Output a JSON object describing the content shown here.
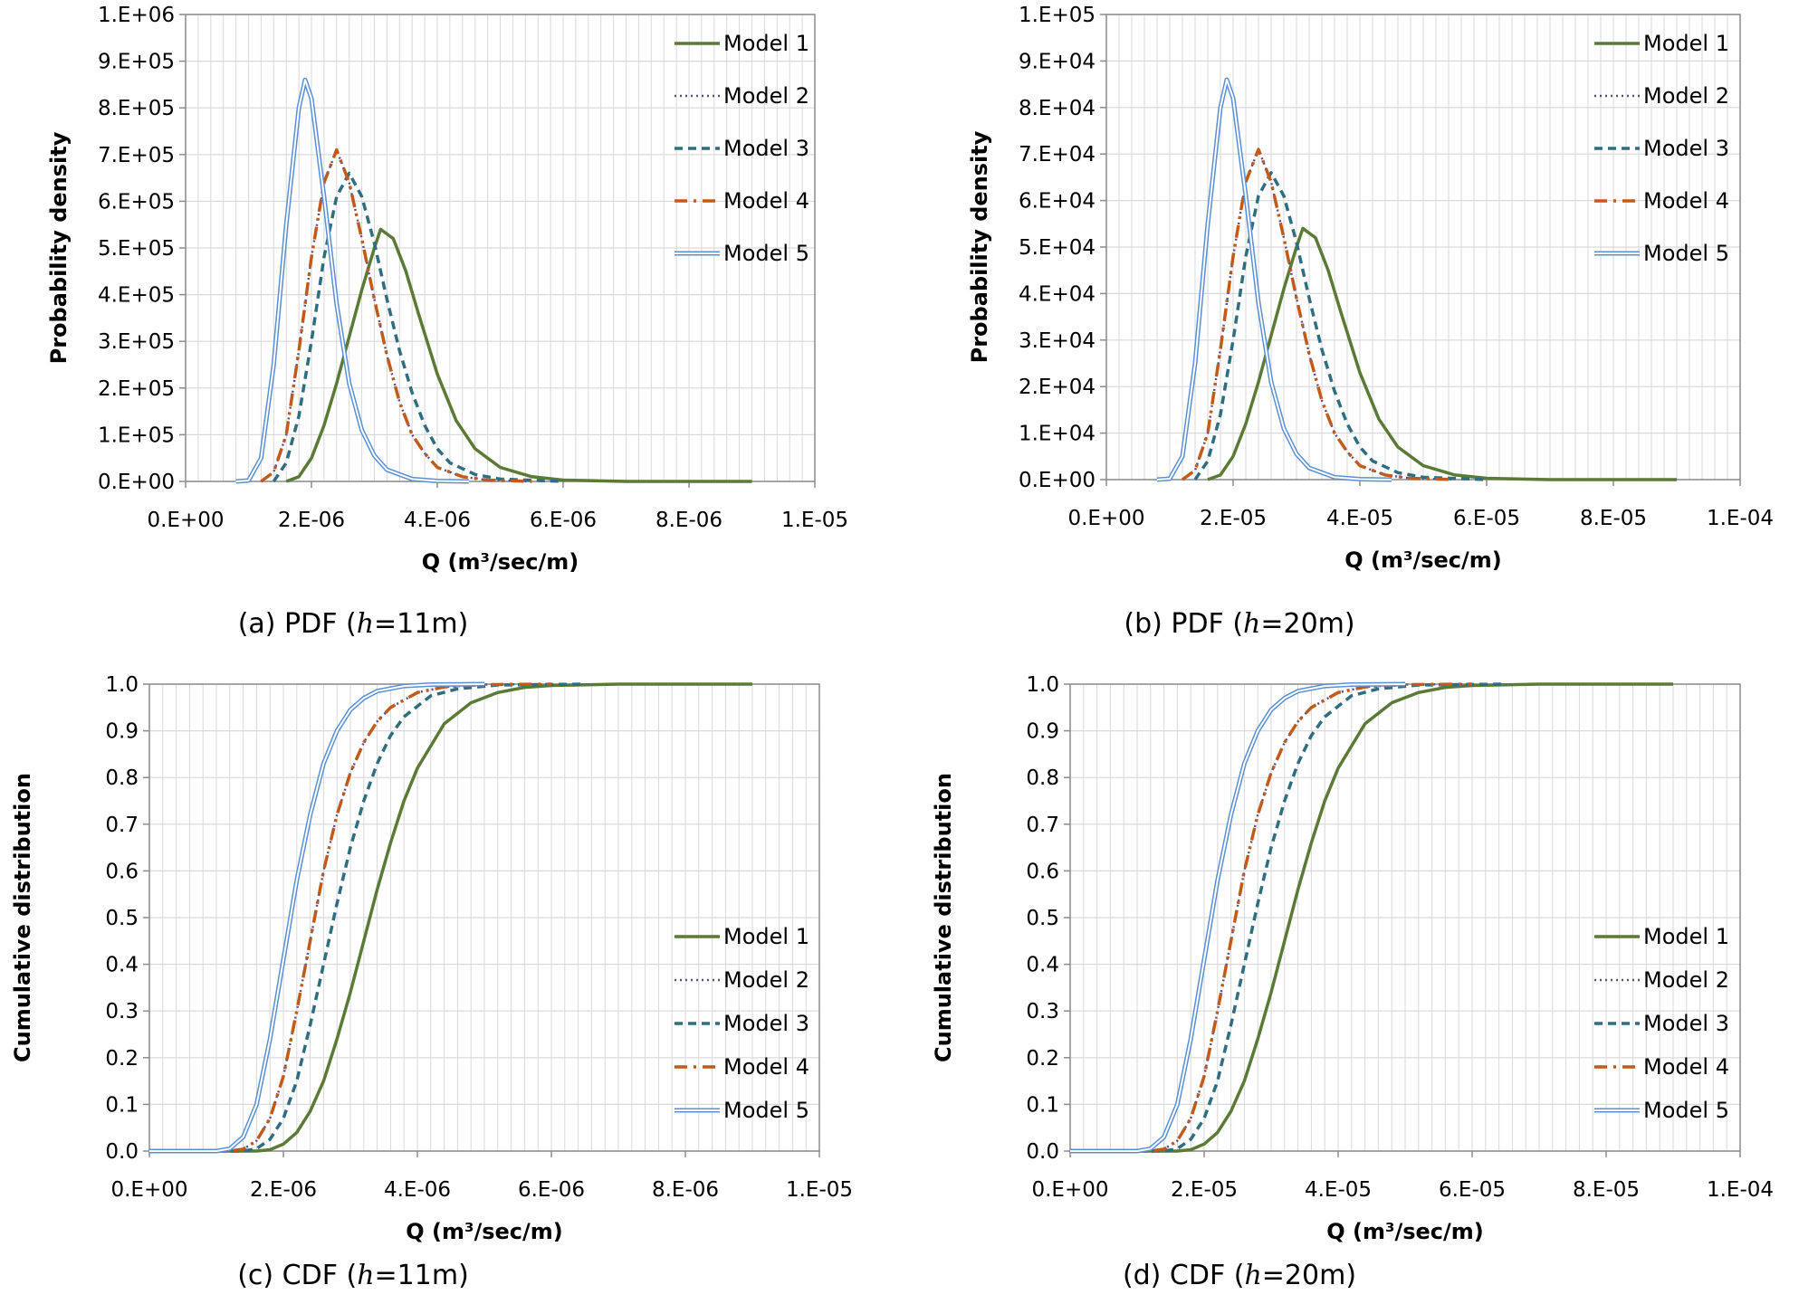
{
  "colors": {
    "model1": "#5a7a35",
    "model2": "#5d4e8a",
    "model3": "#2e6e80",
    "model4": "#c25a1a",
    "model5": "#5b8fd6",
    "grid": "#d9d9d9",
    "axis": "#8c8c8c"
  },
  "chart_data": [
    {
      "type": "line",
      "caption": "(a)  PDF  (h=11m)",
      "caption_parts": {
        "prefix": "(a)  PDF  (",
        "var": "h",
        "suffix": "=11m)"
      },
      "xlabel": "Q (m³/sec/m)",
      "ylabel": "Probability  density",
      "xlim": [
        0,
        1e-05
      ],
      "ylim": [
        0,
        1000000.0
      ],
      "x_ticks": [
        "0.E+00",
        "2.E-06",
        "4.E-06",
        "6.E-06",
        "8.E-06",
        "1.E-05"
      ],
      "y_ticks": [
        "0.E+00",
        "1.E+05",
        "2.E+05",
        "3.E+05",
        "4.E+05",
        "5.E+05",
        "6.E+05",
        "7.E+05",
        "8.E+05",
        "9.E+05",
        "1.E+06"
      ],
      "legend_position": "top-right",
      "grid": true,
      "series": [
        {
          "name": "Model 1",
          "x": [
            1.6e-06,
            1.8e-06,
            2e-06,
            2.2e-06,
            2.4e-06,
            2.6e-06,
            2.8e-06,
            3e-06,
            3.1e-06,
            3.3e-06,
            3.5e-06,
            3.7e-06,
            4e-06,
            4.3e-06,
            4.6e-06,
            5e-06,
            5.5e-06,
            6e-06,
            7e-06,
            9e-06
          ],
          "y": [
            0,
            10000,
            50000,
            120000,
            210000,
            310000,
            410000,
            500000,
            540000,
            520000,
            450000,
            360000,
            230000,
            130000,
            70000,
            30000,
            10000,
            3000,
            0,
            0
          ]
        },
        {
          "name": "Model 2",
          "x": [
            1.2e-06,
            1.4e-06,
            1.6e-06,
            1.8e-06,
            2e-06,
            2.2e-06,
            2.4e-06,
            2.6e-06,
            2.8e-06,
            3e-06,
            3.2e-06,
            3.4e-06,
            3.6e-06,
            3.8e-06,
            4e-06,
            4.4e-06,
            4.8e-06,
            5.5e-06
          ],
          "y": [
            0,
            20000,
            100000,
            280000,
            480000,
            640000,
            710000,
            640000,
            520000,
            390000,
            270000,
            170000,
            100000,
            60000,
            30000,
            10000,
            3000,
            0
          ]
        },
        {
          "name": "Model 3",
          "x": [
            1.4e-06,
            1.6e-06,
            1.8e-06,
            2e-06,
            2.2e-06,
            2.4e-06,
            2.6e-06,
            2.8e-06,
            3e-06,
            3.2e-06,
            3.4e-06,
            3.6e-06,
            3.8e-06,
            4e-06,
            4.2e-06,
            4.6e-06,
            5e-06,
            6e-06
          ],
          "y": [
            0,
            40000,
            140000,
            300000,
            480000,
            610000,
            660000,
            610000,
            510000,
            390000,
            280000,
            190000,
            120000,
            70000,
            40000,
            15000,
            5000,
            0
          ]
        },
        {
          "name": "Model 4",
          "x": [
            1.2e-06,
            1.4e-06,
            1.6e-06,
            1.8e-06,
            2e-06,
            2.2e-06,
            2.4e-06,
            2.6e-06,
            2.8e-06,
            3e-06,
            3.2e-06,
            3.4e-06,
            3.6e-06,
            3.8e-06,
            4e-06,
            4.4e-06,
            4.8e-06,
            5.5e-06
          ],
          "y": [
            0,
            20000,
            100000,
            280000,
            480000,
            640000,
            710000,
            640000,
            520000,
            390000,
            270000,
            170000,
            100000,
            60000,
            30000,
            10000,
            3000,
            0
          ]
        },
        {
          "name": "Model 5",
          "x": [
            8e-07,
            1e-06,
            1.2e-06,
            1.4e-06,
            1.6e-06,
            1.8e-06,
            1.9e-06,
            2e-06,
            2.2e-06,
            2.4e-06,
            2.6e-06,
            2.8e-06,
            3e-06,
            3.2e-06,
            3.6e-06,
            4e-06,
            4.5e-06
          ],
          "y": [
            0,
            2000,
            50000,
            250000,
            550000,
            800000,
            860000,
            820000,
            610000,
            380000,
            210000,
            110000,
            55000,
            25000,
            5000,
            1000,
            0
          ]
        }
      ]
    },
    {
      "type": "line",
      "caption": "(b)  PDF  (h=20m)",
      "caption_parts": {
        "prefix": "(b)  PDF  (",
        "var": "h",
        "suffix": "=20m)"
      },
      "xlabel": "Q (m³/sec/m)",
      "ylabel": "Probability  density",
      "xlim": [
        0,
        0.0001
      ],
      "ylim": [
        0,
        100000.0
      ],
      "x_ticks": [
        "0.E+00",
        "2.E-05",
        "4.E-05",
        "6.E-05",
        "8.E-05",
        "1.E-04"
      ],
      "y_ticks": [
        "0.E+00",
        "1.E+04",
        "2.E+04",
        "3.E+04",
        "4.E+04",
        "5.E+04",
        "6.E+04",
        "7.E+04",
        "8.E+04",
        "9.E+04",
        "1.E+05"
      ],
      "legend_position": "top-right",
      "grid": true,
      "series": [
        {
          "name": "Model 1",
          "x": [
            1.6e-05,
            1.8e-05,
            2e-05,
            2.2e-05,
            2.4e-05,
            2.6e-05,
            2.8e-05,
            3e-05,
            3.1e-05,
            3.3e-05,
            3.5e-05,
            3.7e-05,
            4e-05,
            4.3e-05,
            4.6e-05,
            5e-05,
            5.5e-05,
            6e-05,
            7e-05,
            9e-05
          ],
          "y": [
            0,
            1000,
            5000,
            12000,
            21000,
            31000,
            41000,
            50000,
            54000,
            52000,
            45000,
            36000,
            23000,
            13000,
            7000,
            3000,
            1000,
            300,
            0,
            0
          ]
        },
        {
          "name": "Model 2",
          "x": [
            1.2e-05,
            1.4e-05,
            1.6e-05,
            1.8e-05,
            2e-05,
            2.2e-05,
            2.4e-05,
            2.6e-05,
            2.8e-05,
            3e-05,
            3.2e-05,
            3.4e-05,
            3.6e-05,
            3.8e-05,
            4e-05,
            4.4e-05,
            4.8e-05,
            5.5e-05
          ],
          "y": [
            0,
            2000,
            10000,
            28000,
            48000,
            64000,
            71000,
            64000,
            52000,
            39000,
            27000,
            17000,
            10000,
            6000,
            3000,
            1000,
            300,
            0
          ]
        },
        {
          "name": "Model 3",
          "x": [
            1.4e-05,
            1.6e-05,
            1.8e-05,
            2e-05,
            2.2e-05,
            2.4e-05,
            2.6e-05,
            2.8e-05,
            3e-05,
            3.2e-05,
            3.4e-05,
            3.6e-05,
            3.8e-05,
            4e-05,
            4.2e-05,
            4.6e-05,
            5e-05,
            6e-05
          ],
          "y": [
            0,
            4000,
            14000,
            30000,
            48000,
            61000,
            66000,
            61000,
            51000,
            39000,
            28000,
            19000,
            12000,
            7000,
            4000,
            1500,
            500,
            0
          ]
        },
        {
          "name": "Model 4",
          "x": [
            1.2e-05,
            1.4e-05,
            1.6e-05,
            1.8e-05,
            2e-05,
            2.2e-05,
            2.4e-05,
            2.6e-05,
            2.8e-05,
            3e-05,
            3.2e-05,
            3.4e-05,
            3.6e-05,
            3.8e-05,
            4e-05,
            4.4e-05,
            4.8e-05,
            5.5e-05
          ],
          "y": [
            0,
            2000,
            10000,
            28000,
            48000,
            64000,
            71000,
            64000,
            52000,
            39000,
            27000,
            17000,
            10000,
            6000,
            3000,
            1000,
            300,
            0
          ]
        },
        {
          "name": "Model 5",
          "x": [
            8e-06,
            1e-05,
            1.2e-05,
            1.4e-05,
            1.6e-05,
            1.8e-05,
            1.9e-05,
            2e-05,
            2.2e-05,
            2.4e-05,
            2.6e-05,
            2.8e-05,
            3e-05,
            3.2e-05,
            3.6e-05,
            4e-05,
            4.5e-05
          ],
          "y": [
            0,
            200,
            5000,
            25000,
            55000,
            80000,
            86000,
            82000,
            61000,
            38000,
            21000,
            11000,
            5500,
            2500,
            500,
            100,
            0
          ]
        }
      ]
    },
    {
      "type": "line",
      "caption": "(c)  CDF  (h=11m)",
      "caption_parts": {
        "prefix": "(c)  CDF  (",
        "var": "h",
        "suffix": "=11m)"
      },
      "xlabel": "Q (m³/sec/m)",
      "ylabel": "Cumulative distribution",
      "xlim": [
        0,
        1e-05
      ],
      "ylim": [
        0,
        1
      ],
      "x_ticks": [
        "0.E+00",
        "2.E-06",
        "4.E-06",
        "6.E-06",
        "8.E-06",
        "1.E-05"
      ],
      "y_ticks": [
        "0.0",
        "0.1",
        "0.2",
        "0.3",
        "0.4",
        "0.5",
        "0.6",
        "0.7",
        "0.8",
        "0.9",
        "1.0"
      ],
      "legend_position": "right",
      "grid": true,
      "series": [
        {
          "name": "Model 1",
          "x": [
            0,
            1.6e-06,
            1.8e-06,
            2e-06,
            2.2e-06,
            2.4e-06,
            2.6e-06,
            2.8e-06,
            3e-06,
            3.2e-06,
            3.4e-06,
            3.6e-06,
            3.8e-06,
            4e-06,
            4.4e-06,
            4.8e-06,
            5.2e-06,
            5.6e-06,
            6e-06,
            7e-06,
            9e-06
          ],
          "y": [
            0,
            0,
            0.003,
            0.015,
            0.04,
            0.085,
            0.15,
            0.24,
            0.34,
            0.45,
            0.56,
            0.66,
            0.75,
            0.82,
            0.915,
            0.96,
            0.982,
            0.993,
            0.997,
            1,
            1
          ]
        },
        {
          "name": "Model 2",
          "x": [
            0,
            1.2e-06,
            1.4e-06,
            1.6e-06,
            1.8e-06,
            2e-06,
            2.2e-06,
            2.4e-06,
            2.6e-06,
            2.8e-06,
            3e-06,
            3.2e-06,
            3.4e-06,
            3.6e-06,
            4e-06,
            4.4e-06,
            5e-06,
            6e-06
          ],
          "y": [
            0,
            0,
            0.004,
            0.022,
            0.07,
            0.16,
            0.3,
            0.45,
            0.6,
            0.72,
            0.81,
            0.875,
            0.92,
            0.95,
            0.982,
            0.994,
            0.999,
            1
          ]
        },
        {
          "name": "Model 3",
          "x": [
            0,
            1.4e-06,
            1.6e-06,
            1.8e-06,
            2e-06,
            2.2e-06,
            2.4e-06,
            2.6e-06,
            2.8e-06,
            3e-06,
            3.2e-06,
            3.4e-06,
            3.6e-06,
            3.8e-06,
            4.2e-06,
            4.6e-06,
            5.2e-06,
            6.5e-06
          ],
          "y": [
            0,
            0,
            0.005,
            0.025,
            0.07,
            0.15,
            0.27,
            0.4,
            0.53,
            0.65,
            0.75,
            0.83,
            0.89,
            0.93,
            0.975,
            0.99,
            0.998,
            1
          ]
        },
        {
          "name": "Model 4",
          "x": [
            0,
            1.2e-06,
            1.4e-06,
            1.6e-06,
            1.8e-06,
            2e-06,
            2.2e-06,
            2.4e-06,
            2.6e-06,
            2.8e-06,
            3e-06,
            3.2e-06,
            3.4e-06,
            3.6e-06,
            4e-06,
            4.4e-06,
            5e-06,
            6e-06
          ],
          "y": [
            0,
            0,
            0.004,
            0.022,
            0.07,
            0.16,
            0.3,
            0.45,
            0.6,
            0.72,
            0.81,
            0.875,
            0.92,
            0.95,
            0.982,
            0.994,
            0.999,
            1
          ]
        },
        {
          "name": "Model 5",
          "x": [
            0,
            1e-06,
            1.2e-06,
            1.4e-06,
            1.6e-06,
            1.8e-06,
            2e-06,
            2.2e-06,
            2.4e-06,
            2.6e-06,
            2.8e-06,
            3e-06,
            3.2e-06,
            3.4e-06,
            3.8e-06,
            4.2e-06,
            5e-06
          ],
          "y": [
            0,
            0,
            0.005,
            0.03,
            0.1,
            0.24,
            0.41,
            0.58,
            0.72,
            0.83,
            0.9,
            0.945,
            0.97,
            0.985,
            0.996,
            0.999,
            1
          ]
        }
      ]
    },
    {
      "type": "line",
      "caption": "(d)  CDF  (h=20m)",
      "caption_parts": {
        "prefix": "(d)  CDF  (",
        "var": "h",
        "suffix": "=20m)"
      },
      "xlabel": "Q (m³/sec/m)",
      "ylabel": "Cumulative distribution",
      "xlim": [
        0,
        0.0001
      ],
      "ylim": [
        0,
        1
      ],
      "x_ticks": [
        "0.E+00",
        "2.E-05",
        "4.E-05",
        "6.E-05",
        "8.E-05",
        "1.E-04"
      ],
      "y_ticks": [
        "0.0",
        "0.1",
        "0.2",
        "0.3",
        "0.4",
        "0.5",
        "0.6",
        "0.7",
        "0.8",
        "0.9",
        "1.0"
      ],
      "legend_position": "right",
      "grid": true,
      "series": [
        {
          "name": "Model 1",
          "x": [
            0,
            1.6e-05,
            1.8e-05,
            2e-05,
            2.2e-05,
            2.4e-05,
            2.6e-05,
            2.8e-05,
            3e-05,
            3.2e-05,
            3.4e-05,
            3.6e-05,
            3.8e-05,
            4e-05,
            4.4e-05,
            4.8e-05,
            5.2e-05,
            5.6e-05,
            6e-05,
            7e-05,
            9e-05
          ],
          "y": [
            0,
            0,
            0.003,
            0.015,
            0.04,
            0.085,
            0.15,
            0.24,
            0.34,
            0.45,
            0.56,
            0.66,
            0.75,
            0.82,
            0.915,
            0.96,
            0.982,
            0.993,
            0.997,
            1,
            1
          ]
        },
        {
          "name": "Model 2",
          "x": [
            0,
            1.2e-05,
            1.4e-05,
            1.6e-05,
            1.8e-05,
            2e-05,
            2.2e-05,
            2.4e-05,
            2.6e-05,
            2.8e-05,
            3e-05,
            3.2e-05,
            3.4e-05,
            3.6e-05,
            4e-05,
            4.4e-05,
            5e-05,
            6e-05
          ],
          "y": [
            0,
            0,
            0.004,
            0.022,
            0.07,
            0.16,
            0.3,
            0.45,
            0.6,
            0.72,
            0.81,
            0.875,
            0.92,
            0.95,
            0.982,
            0.994,
            0.999,
            1
          ]
        },
        {
          "name": "Model 3",
          "x": [
            0,
            1.4e-05,
            1.6e-05,
            1.8e-05,
            2e-05,
            2.2e-05,
            2.4e-05,
            2.6e-05,
            2.8e-05,
            3e-05,
            3.2e-05,
            3.4e-05,
            3.6e-05,
            3.8e-05,
            4.2e-05,
            4.6e-05,
            5.2e-05,
            6.5e-05
          ],
          "y": [
            0,
            0,
            0.005,
            0.025,
            0.07,
            0.15,
            0.27,
            0.4,
            0.53,
            0.65,
            0.75,
            0.83,
            0.89,
            0.93,
            0.975,
            0.99,
            0.998,
            1
          ]
        },
        {
          "name": "Model 4",
          "x": [
            0,
            1.2e-05,
            1.4e-05,
            1.6e-05,
            1.8e-05,
            2e-05,
            2.2e-05,
            2.4e-05,
            2.6e-05,
            2.8e-05,
            3e-05,
            3.2e-05,
            3.4e-05,
            3.6e-05,
            4e-05,
            4.4e-05,
            5e-05,
            6e-05
          ],
          "y": [
            0,
            0,
            0.004,
            0.022,
            0.07,
            0.16,
            0.3,
            0.45,
            0.6,
            0.72,
            0.81,
            0.875,
            0.92,
            0.95,
            0.982,
            0.994,
            0.999,
            1
          ]
        },
        {
          "name": "Model 5",
          "x": [
            0,
            1e-05,
            1.2e-05,
            1.4e-05,
            1.6e-05,
            1.8e-05,
            2e-05,
            2.2e-05,
            2.4e-05,
            2.6e-05,
            2.8e-05,
            3e-05,
            3.2e-05,
            3.4e-05,
            3.8e-05,
            4.2e-05,
            5e-05
          ],
          "y": [
            0,
            0,
            0.005,
            0.03,
            0.1,
            0.24,
            0.41,
            0.58,
            0.72,
            0.83,
            0.9,
            0.945,
            0.97,
            0.985,
            0.996,
            0.999,
            1
          ]
        }
      ]
    }
  ]
}
